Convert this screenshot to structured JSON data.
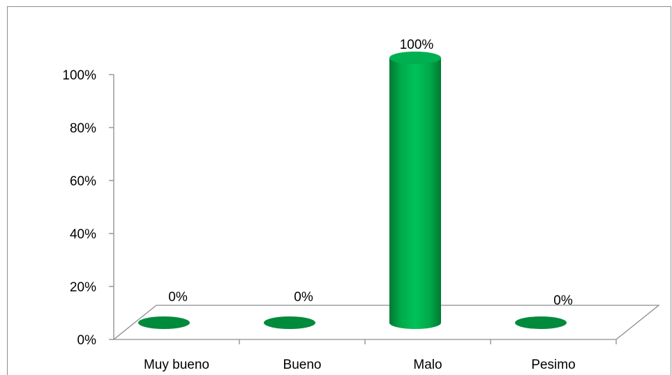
{
  "chart_data": {
    "type": "bar",
    "style": "3d-cylinder",
    "categories": [
      "Muy bueno",
      "Bueno",
      "Malo",
      "Pesimo"
    ],
    "values": [
      0,
      0,
      100,
      0
    ],
    "data_labels": [
      "0%",
      "0%",
      "100%",
      "0%"
    ],
    "y_ticks": [
      "0%",
      "20%",
      "40%",
      "60%",
      "80%",
      "100%"
    ],
    "ylim": [
      0,
      100
    ],
    "y_unit": "%",
    "grid": false,
    "legend": "none",
    "bar_color": "#00b050",
    "bar_dark_color": "#008a3c"
  }
}
